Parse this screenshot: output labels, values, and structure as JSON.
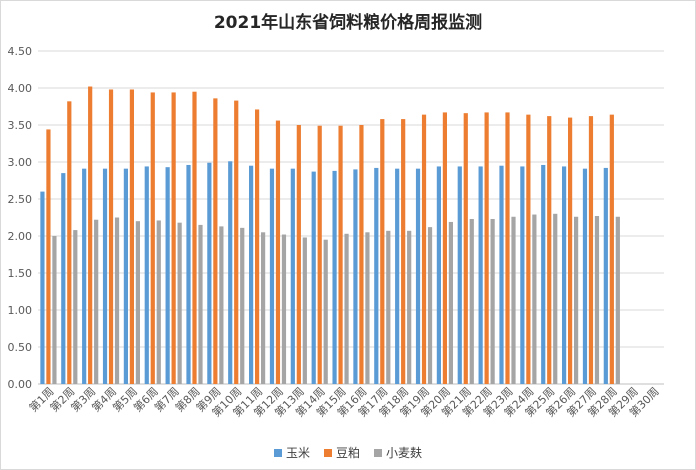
{
  "chart_data": {
    "type": "bar",
    "title": "2021年山东省饲料粮价格周报监测",
    "categories": [
      "第1周",
      "第2周",
      "第3周",
      "第4周",
      "第5周",
      "第6周",
      "第7周",
      "第8周",
      "第9周",
      "第10周",
      "第11周",
      "第12周",
      "第13周",
      "第14周",
      "第15周",
      "第16周",
      "第17周",
      "第18周",
      "第19周",
      "第20周",
      "第21周",
      "第22周",
      "第23周",
      "第24周",
      "第25周",
      "第26周",
      "第27周",
      "第28周",
      "第29周",
      "第30周"
    ],
    "series": [
      {
        "name": "玉米",
        "color": "#5b9bd5",
        "values": [
          2.6,
          2.85,
          2.91,
          2.91,
          2.91,
          2.94,
          2.93,
          2.96,
          2.99,
          3.01,
          2.95,
          2.91,
          2.91,
          2.87,
          2.88,
          2.9,
          2.92,
          2.91,
          2.91,
          2.94,
          2.94,
          2.94,
          2.95,
          2.94,
          2.96,
          2.94,
          2.91,
          2.92,
          null,
          null
        ]
      },
      {
        "name": "豆粕",
        "color": "#ed7d31",
        "values": [
          3.44,
          3.82,
          4.02,
          3.98,
          3.98,
          3.94,
          3.94,
          3.95,
          3.86,
          3.83,
          3.71,
          3.56,
          3.5,
          3.49,
          3.49,
          3.5,
          3.58,
          3.58,
          3.64,
          3.67,
          3.66,
          3.67,
          3.67,
          3.64,
          3.62,
          3.6,
          3.62,
          3.64,
          null,
          null
        ]
      },
      {
        "name": "小麦麸",
        "color": "#a5a5a5",
        "values": [
          2.0,
          2.08,
          2.22,
          2.25,
          2.2,
          2.21,
          2.18,
          2.15,
          2.13,
          2.11,
          2.05,
          2.02,
          1.98,
          1.95,
          2.03,
          2.05,
          2.07,
          2.07,
          2.12,
          2.19,
          2.23,
          2.23,
          2.26,
          2.29,
          2.3,
          2.26,
          2.27,
          2.26,
          null,
          null
        ]
      }
    ],
    "ylim": [
      0,
      4.5
    ],
    "ytick_step": 0.5,
    "ytick_labels": [
      "0.00",
      "0.50",
      "1.00",
      "1.50",
      "2.00",
      "2.50",
      "3.00",
      "3.50",
      "4.00",
      "4.50"
    ],
    "grid": true,
    "legend_position": "bottom"
  }
}
